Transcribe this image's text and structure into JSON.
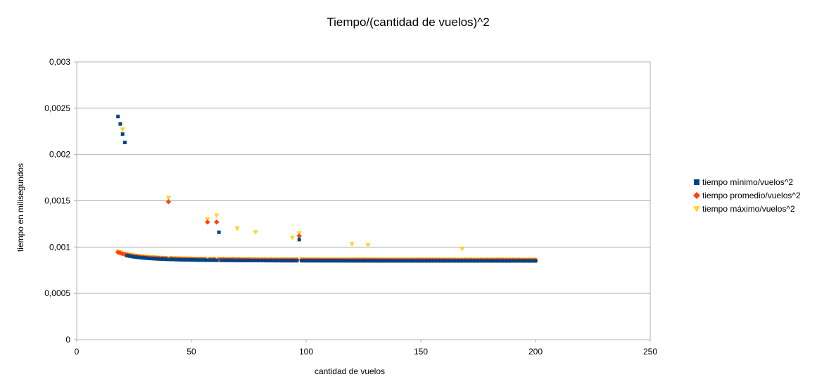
{
  "chart_data": {
    "type": "scatter",
    "title": "Tiempo/(cantidad de vuelos)^2",
    "xlabel": "cantidad de vuelos",
    "ylabel": "tiempo en milisegundos",
    "xlim": [
      0,
      250
    ],
    "ylim": [
      0,
      0.003
    ],
    "x_ticks": [
      0,
      50,
      100,
      150,
      200,
      250
    ],
    "x_tick_labels": [
      "0",
      "50",
      "100",
      "150",
      "200",
      "250"
    ],
    "y_ticks": [
      0,
      0.0005,
      0.001,
      0.0015,
      0.002,
      0.0025,
      0.003
    ],
    "y_tick_labels": [
      "0",
      "0,0005",
      "0,001",
      "0,0015",
      "0,002",
      "0,0025",
      "0,003"
    ],
    "grid": "horizontal",
    "legend_position": "right",
    "x_range": [
      18,
      200
    ],
    "curve_model": {
      "a": 0.00085,
      "b": 0.028
    },
    "series": [
      {
        "name": "tiempo mínimo/vuelos^2",
        "marker": "square",
        "color": "#004586",
        "outliers": [
          [
            18,
            0.00241
          ],
          [
            19,
            0.00233
          ],
          [
            20,
            0.00222
          ],
          [
            21,
            0.00213
          ],
          [
            62,
            0.00116
          ],
          [
            97,
            0.00108
          ]
        ]
      },
      {
        "name": "tiempo promedio/vuelos^2",
        "marker": "diamond",
        "color": "#ff420e",
        "outliers": [
          [
            40,
            0.00149
          ],
          [
            57,
            0.00127
          ],
          [
            61,
            0.00127
          ],
          [
            97,
            0.00112
          ]
        ]
      },
      {
        "name": "tiempo máximo/vuelos^2",
        "marker": "triangle-down",
        "color": "#ffd320",
        "outliers": [
          [
            20,
            0.00227
          ],
          [
            40,
            0.00153
          ],
          [
            57,
            0.0013
          ],
          [
            61,
            0.00134
          ],
          [
            70,
            0.0012
          ],
          [
            78,
            0.00116
          ],
          [
            94,
            0.0011
          ],
          [
            97,
            0.00115
          ],
          [
            120,
            0.00103
          ],
          [
            127,
            0.00102
          ],
          [
            168,
            0.00098
          ]
        ]
      }
    ]
  }
}
